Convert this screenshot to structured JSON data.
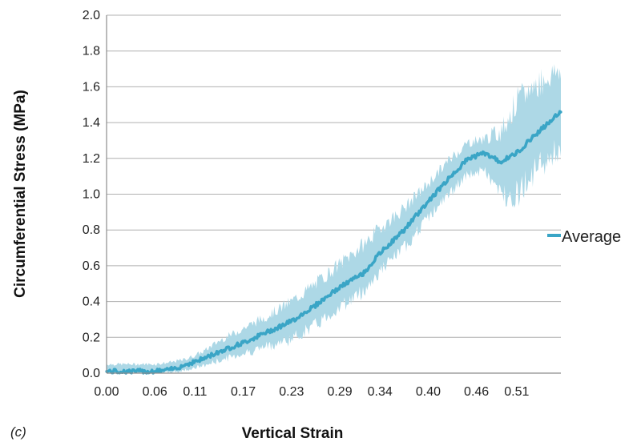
{
  "panel_label": "(c)",
  "chart_data": {
    "type": "line",
    "xlabel": "Vertical Strain",
    "ylabel": "Circumferential Stress (MPa)",
    "xlim": [
      0.0,
      0.565
    ],
    "ylim": [
      0.0,
      2.0
    ],
    "x_ticks": [
      0.0,
      0.06,
      0.11,
      0.17,
      0.23,
      0.29,
      0.34,
      0.4,
      0.46,
      0.51
    ],
    "x_tick_labels": [
      "0.00",
      "0.06",
      "0.11",
      "0.17",
      "0.23",
      "0.29",
      "0.34",
      "0.40",
      "0.46",
      "0.51"
    ],
    "y_ticks": [
      0.0,
      0.2,
      0.4,
      0.6,
      0.8,
      1.0,
      1.2,
      1.4,
      1.6,
      1.8,
      2.0
    ],
    "y_tick_labels": [
      "0.0",
      "0.2",
      "0.4",
      "0.6",
      "0.8",
      "1.0",
      "1.2",
      "1.4",
      "1.6",
      "1.8",
      "2.0"
    ],
    "grid": "horizontal",
    "legend": {
      "position": "right",
      "entries": [
        "Average"
      ]
    },
    "colors": {
      "line": "#3aa5c6",
      "band": "#add8e6",
      "grid": "#b0b0b0",
      "axis": "#8c8c8c"
    },
    "series": [
      {
        "name": "Average",
        "x": [
          0.0,
          0.03,
          0.06,
          0.08,
          0.1,
          0.12,
          0.14,
          0.17,
          0.2,
          0.23,
          0.26,
          0.29,
          0.32,
          0.34,
          0.37,
          0.4,
          0.43,
          0.45,
          0.47,
          0.49,
          0.51,
          0.53,
          0.565
        ],
        "y": [
          0.01,
          0.01,
          0.01,
          0.02,
          0.05,
          0.08,
          0.12,
          0.17,
          0.23,
          0.29,
          0.38,
          0.48,
          0.56,
          0.67,
          0.8,
          0.96,
          1.11,
          1.2,
          1.23,
          1.18,
          1.23,
          1.32,
          1.46
        ],
        "band_lower": [
          0.0,
          0.0,
          0.0,
          0.0,
          0.02,
          0.04,
          0.07,
          0.11,
          0.15,
          0.19,
          0.27,
          0.37,
          0.46,
          0.57,
          0.7,
          0.87,
          1.02,
          1.11,
          1.13,
          1.0,
          1.0,
          1.12,
          1.26
        ],
        "band_upper": [
          0.05,
          0.05,
          0.05,
          0.06,
          0.08,
          0.12,
          0.18,
          0.25,
          0.32,
          0.4,
          0.5,
          0.61,
          0.72,
          0.81,
          0.92,
          1.06,
          1.21,
          1.29,
          1.31,
          1.35,
          1.51,
          1.6,
          1.7
        ]
      }
    ]
  }
}
